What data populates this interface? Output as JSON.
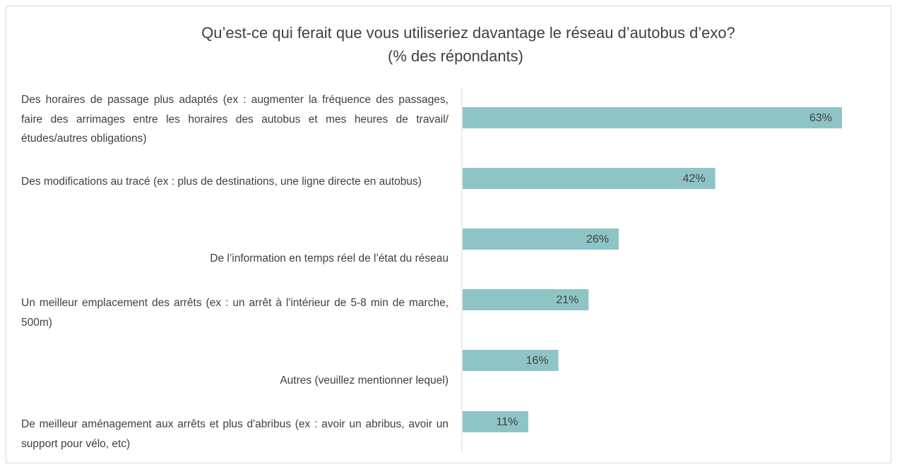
{
  "chart_data": {
    "type": "bar",
    "orientation": "horizontal",
    "title": [
      "Qu’est-ce qui ferait que vous utiliseriez davantage le réseau d’autobus d’exo?",
      "(% des répondants)"
    ],
    "categories": [
      "Des horaires de passage plus adaptés (ex : augmenter la fréquence des passages, faire des arrimages entre les horaires des autobus et mes heures de travail/études/autres obligations)",
      "Des modifications au tracé (ex : plus de destinations, une ligne directe en autobus)",
      "De l’information en temps réel de l’état du réseau",
      "Un meilleur emplacement des arrêts (ex : un arrêt à l'intérieur de 5-8 min de marche, 500m)",
      "Autres (veuillez mentionner lequel)",
      "De meilleur aménagement aux arrêts et plus d'abribus (ex : avoir un abribus, avoir un support pour vélo, etc)"
    ],
    "values": [
      63,
      42,
      26,
      21,
      16,
      11
    ],
    "value_labels": [
      "63%",
      "42%",
      "26%",
      "21%",
      "16%",
      "11%"
    ],
    "color": "#8fc4c6"
  }
}
